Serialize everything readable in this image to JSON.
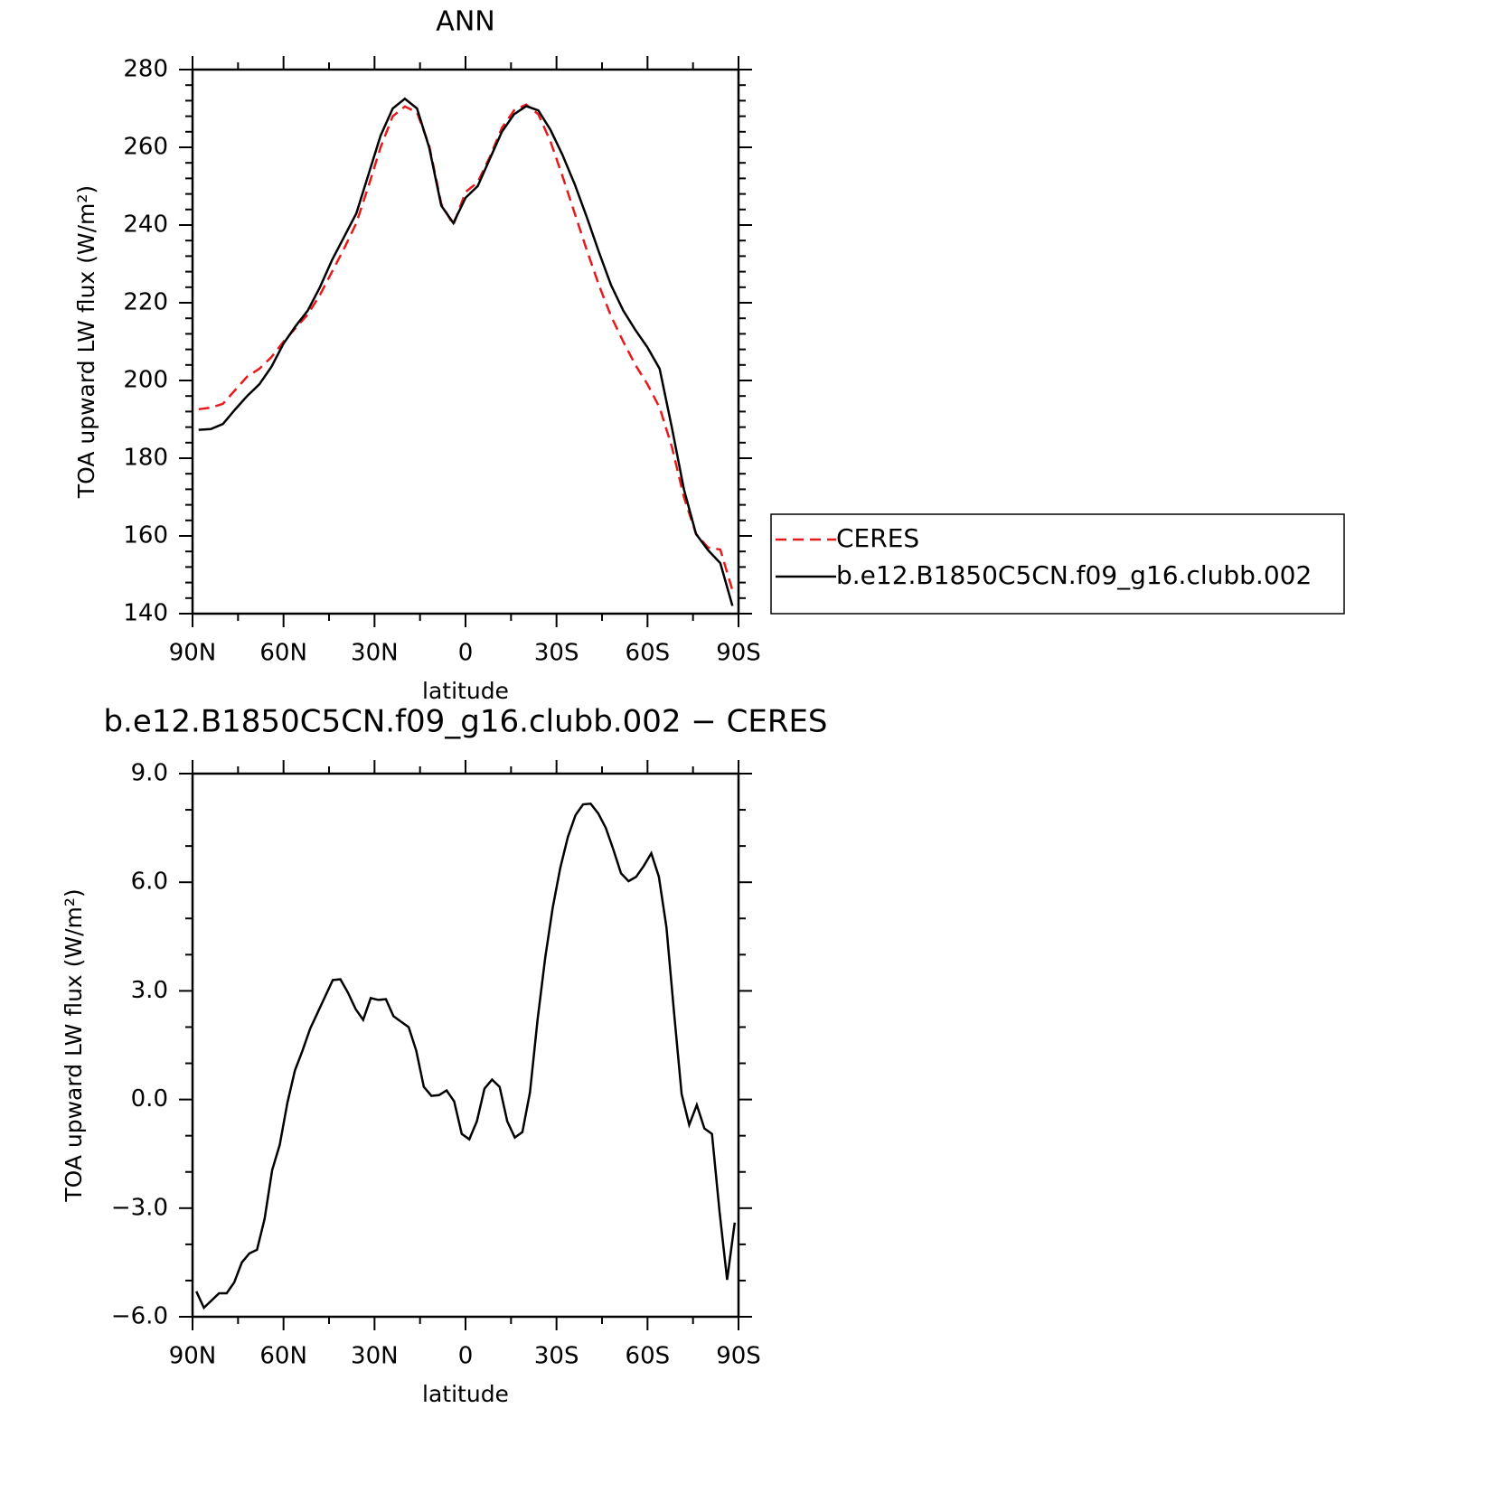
{
  "chart_data": [
    {
      "type": "line",
      "title": "ANN",
      "xlabel": "latitude",
      "ylabel": "TOA upward LW flux (W/m²)",
      "xlim": [
        90,
        -90
      ],
      "ylim": [
        140,
        280
      ],
      "xticks": [
        {
          "value": 90,
          "label": "90N"
        },
        {
          "value": 60,
          "label": "60N"
        },
        {
          "value": 30,
          "label": "30N"
        },
        0,
        {
          "value": -30,
          "label": "30S"
        },
        {
          "value": -60,
          "label": "60S"
        },
        {
          "value": -90,
          "label": "90S"
        }
      ],
      "yticks": [
        140,
        160,
        180,
        200,
        220,
        240,
        260,
        280
      ],
      "legend": "right",
      "x": [
        88,
        84,
        80,
        76,
        72,
        68,
        64,
        60,
        56,
        52,
        48,
        44,
        40,
        36,
        32,
        28,
        24,
        20,
        16,
        12,
        8,
        4,
        0,
        -4,
        -8,
        -12,
        -16,
        -20,
        -24,
        -28,
        -32,
        -36,
        -40,
        -44,
        -48,
        -52,
        -56,
        -60,
        -64,
        -68,
        -72,
        -76,
        -80,
        -84,
        -88
      ],
      "series": [
        {
          "name": "CERES",
          "color": "#e8191b",
          "linestyle": "dashed",
          "values": [
            192.6,
            193,
            194,
            197.5,
            201,
            203,
            206,
            210,
            213.5,
            217,
            222,
            228,
            234,
            240.5,
            250,
            260,
            268,
            270.5,
            269,
            260.5,
            245.5,
            240,
            248.5,
            251,
            257.5,
            265,
            269.5,
            271,
            268.5,
            261.5,
            252.5,
            243,
            233.5,
            224.5,
            216.5,
            210,
            204,
            199,
            193,
            183,
            170,
            160.5,
            157,
            156.5,
            146
          ]
        },
        {
          "name": "b.e12.B1850C5CN.f09_g16.clubb.002",
          "color": "#000000",
          "linestyle": "solid",
          "values": [
            187.3,
            187.5,
            188.8,
            192.5,
            196,
            199,
            203.5,
            209.5,
            214,
            218,
            224,
            231,
            237,
            243,
            253,
            263,
            270,
            272.5,
            270,
            260,
            245,
            240.5,
            247,
            250,
            257,
            264,
            268.5,
            270.6,
            269.5,
            264.5,
            258,
            250.5,
            242,
            233,
            224.5,
            218,
            213,
            208.5,
            203,
            188,
            172,
            160.5,
            156.3,
            153,
            142
          ]
        }
      ]
    },
    {
      "type": "line",
      "title": "b.e12.B1850C5CN.f09_g16.clubb.002 − CERES",
      "xlabel": "latitude",
      "ylabel": "TOA upward LW flux (W/m²)",
      "xlim": [
        90,
        -90
      ],
      "ylim": [
        -6,
        9
      ],
      "xticks": [
        {
          "value": 90,
          "label": "90N"
        },
        {
          "value": 60,
          "label": "60N"
        },
        {
          "value": 30,
          "label": "30N"
        },
        0,
        {
          "value": -30,
          "label": "30S"
        },
        {
          "value": -60,
          "label": "60S"
        },
        {
          "value": -90,
          "label": "90S"
        }
      ],
      "yticks": [
        {
          "value": -6,
          "label": "−6.0"
        },
        {
          "value": -3,
          "label": "−3.0"
        },
        {
          "value": 0,
          "label": "0.0"
        },
        {
          "value": 3,
          "label": "3.0"
        },
        {
          "value": 6,
          "label": "6.0"
        },
        {
          "value": 9,
          "label": "9.0"
        }
      ],
      "x": [
        88.75,
        86.25,
        83.75,
        81.25,
        78.75,
        76.25,
        73.75,
        71.25,
        68.75,
        66.25,
        63.75,
        61.25,
        58.75,
        56.25,
        53.75,
        51.25,
        48.75,
        46.25,
        43.75,
        41.25,
        38.75,
        36.25,
        33.75,
        31.25,
        28.75,
        26.25,
        23.75,
        21.25,
        18.75,
        16.25,
        13.75,
        11.25,
        8.75,
        6.25,
        3.75,
        1.25,
        -1.25,
        -3.75,
        -6.25,
        -8.75,
        -11.25,
        -13.75,
        -16.25,
        -18.75,
        -21.25,
        -23.75,
        -26.25,
        -28.75,
        -31.25,
        -33.75,
        -36.25,
        -38.75,
        -41.25,
        -43.75,
        -46.25,
        -48.75,
        -51.25,
        -53.75,
        -56.25,
        -58.75,
        -61.25,
        -63.75,
        -66.25,
        -68.75,
        -71.25,
        -73.75,
        -76.25,
        -78.75,
        -81.25,
        -83.75,
        -86.25,
        -88.75
      ],
      "series": [
        {
          "color": "#000000",
          "linestyle": "solid",
          "values": [
            -5.3,
            -5.75,
            -5.55,
            -5.35,
            -5.35,
            -5.05,
            -4.5,
            -4.25,
            -4.15,
            -3.3,
            -1.95,
            -1.25,
            -0.1,
            0.8,
            1.35,
            1.95,
            2.4,
            2.85,
            3.3,
            3.32,
            2.95,
            2.5,
            2.2,
            2.8,
            2.75,
            2.77,
            2.3,
            2.15,
            2.0,
            1.35,
            0.35,
            0.1,
            0.12,
            0.25,
            -0.05,
            -0.95,
            -1.1,
            -0.6,
            0.3,
            0.55,
            0.35,
            -0.6,
            -1.05,
            -0.9,
            0.2,
            2.2,
            3.9,
            5.3,
            6.4,
            7.25,
            7.85,
            8.15,
            8.17,
            7.9,
            7.5,
            6.9,
            6.25,
            6.03,
            6.15,
            6.45,
            6.8,
            6.15,
            4.75,
            2.4,
            0.15,
            -0.7,
            -0.15,
            -0.8,
            -0.95,
            -3.1,
            -4.98,
            -3.4
          ]
        }
      ]
    }
  ]
}
